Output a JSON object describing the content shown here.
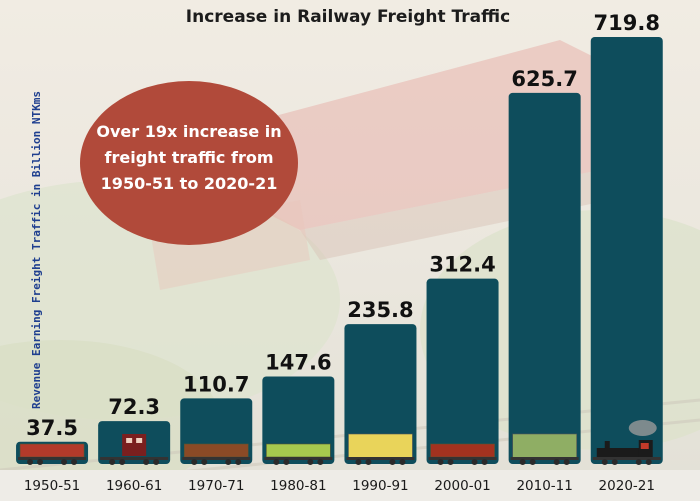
{
  "chart_data": {
    "type": "bar",
    "title": "Increase in Railway Freight Traffic",
    "ylabel": "Revenue Earning Freight Traffic in Billion NTKms",
    "xlabel": "",
    "categories": [
      "1950-51",
      "1960-61",
      "1970-71",
      "1980-81",
      "1990-91",
      "2000-01",
      "2010-11",
      "2020-21"
    ],
    "values": [
      37.5,
      72.3,
      110.7,
      147.6,
      235.8,
      312.4,
      625.7,
      719.8
    ],
    "data_labels": [
      "37.5",
      "72.3",
      "110.7",
      "147.6",
      "235.8",
      "312.4",
      "625.7",
      "719.8"
    ],
    "ylim": [
      0,
      719.8
    ],
    "grid": false,
    "legend": "none",
    "annotation": [
      "Over 19x increase in",
      "freight traffic from",
      "1950-51 to 2020-21"
    ]
  },
  "colors": {
    "bar": "#0e4d5c",
    "callout": "#b14a3a",
    "ylabel": "#1f3f8f",
    "text": "#1a1a1a"
  },
  "decorations": {
    "bar_wagon_icons": [
      "red-wagon-icon",
      "maroon-wagon-icon",
      "brown-open-wagon-icon",
      "green-flat-wagon-icon",
      "yellow-boxcar-icon",
      "red-flat-wagon-icon",
      "green-boxcar-icon",
      "steam-locomotive-icon"
    ]
  }
}
